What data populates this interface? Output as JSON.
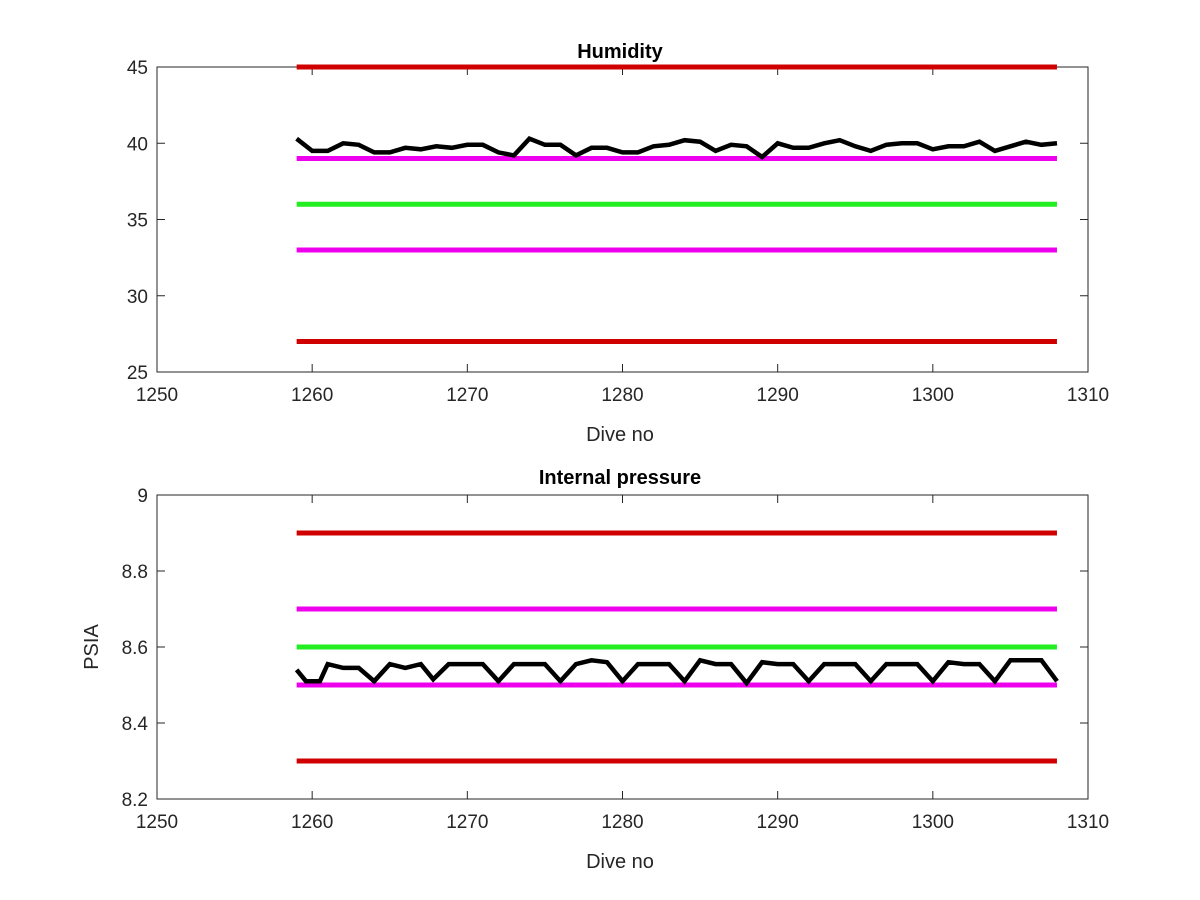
{
  "colors": {
    "red_limit": "#d00000",
    "magenta_limit": "#ee00ee",
    "green_target": "#22ee22",
    "data_line": "#000000",
    "axes": "#262626"
  },
  "chart_data": [
    {
      "type": "line",
      "title": "Humidity",
      "xlabel": "Dive no",
      "ylabel": "",
      "xlim": [
        1250,
        1310
      ],
      "ylim": [
        25,
        45
      ],
      "xticks": [
        1250,
        1260,
        1270,
        1280,
        1290,
        1300,
        1310
      ],
      "yticks": [
        25,
        30,
        35,
        40,
        45
      ],
      "xtick_labels": [
        "1250",
        "1260",
        "1270",
        "1280",
        "1290",
        "1300",
        "1310"
      ],
      "ytick_labels": [
        "25",
        "30",
        "35",
        "40",
        "45"
      ],
      "reference_lines": [
        {
          "y": 45,
          "x": [
            1259,
            1308
          ],
          "color": "red_limit"
        },
        {
          "y": 39,
          "x": [
            1259,
            1308
          ],
          "color": "magenta_limit"
        },
        {
          "y": 36,
          "x": [
            1259,
            1308
          ],
          "color": "green_target"
        },
        {
          "y": 33,
          "x": [
            1259,
            1308
          ],
          "color": "magenta_limit"
        },
        {
          "y": 27,
          "x": [
            1259,
            1308
          ],
          "color": "red_limit"
        }
      ],
      "series": [
        {
          "color": "data_line",
          "x": [
            1259,
            1260,
            1261,
            1262,
            1263,
            1264,
            1265,
            1266,
            1267,
            1268,
            1269,
            1270,
            1271,
            1272,
            1273,
            1274,
            1275,
            1276,
            1277,
            1278,
            1279,
            1280,
            1281,
            1282,
            1283,
            1284,
            1285,
            1286,
            1287,
            1288,
            1289,
            1290,
            1291,
            1292,
            1293,
            1294,
            1295,
            1296,
            1297,
            1298,
            1299,
            1300,
            1301,
            1302,
            1303,
            1304,
            1305,
            1306,
            1307,
            1308
          ],
          "y": [
            40.3,
            39.5,
            39.5,
            40.0,
            39.9,
            39.4,
            39.4,
            39.7,
            39.6,
            39.8,
            39.7,
            39.9,
            39.9,
            39.4,
            39.2,
            40.3,
            39.9,
            39.9,
            39.2,
            39.7,
            39.7,
            39.4,
            39.4,
            39.8,
            39.9,
            40.2,
            40.1,
            39.5,
            39.9,
            39.8,
            39.1,
            40.0,
            39.7,
            39.7,
            40.0,
            40.2,
            39.8,
            39.5,
            39.9,
            40.0,
            40.0,
            39.6,
            39.8,
            39.8,
            40.1,
            39.5,
            39.8,
            40.1,
            39.9,
            40.0
          ]
        }
      ]
    },
    {
      "type": "line",
      "title": "Internal pressure",
      "xlabel": "Dive no",
      "ylabel": "PSIA",
      "xlim": [
        1250,
        1310
      ],
      "ylim": [
        8.2,
        9.0
      ],
      "xticks": [
        1250,
        1260,
        1270,
        1280,
        1290,
        1300,
        1310
      ],
      "yticks": [
        8.2,
        8.4,
        8.6,
        8.8,
        9.0
      ],
      "xtick_labels": [
        "1250",
        "1260",
        "1270",
        "1280",
        "1290",
        "1300",
        "1310"
      ],
      "ytick_labels": [
        "8.2",
        "8.4",
        "8.6",
        "8.8",
        "9"
      ],
      "reference_lines": [
        {
          "y": 8.9,
          "x": [
            1259,
            1308
          ],
          "color": "red_limit"
        },
        {
          "y": 8.7,
          "x": [
            1259,
            1308
          ],
          "color": "magenta_limit"
        },
        {
          "y": 8.6,
          "x": [
            1259,
            1308
          ],
          "color": "green_target"
        },
        {
          "y": 8.5,
          "x": [
            1259,
            1308
          ],
          "color": "magenta_limit"
        },
        {
          "y": 8.3,
          "x": [
            1259,
            1308
          ],
          "color": "red_limit"
        }
      ],
      "series": [
        {
          "color": "data_line",
          "x": [
            1259,
            1259.6,
            1260.5,
            1261,
            1262,
            1263,
            1264,
            1265,
            1266,
            1267,
            1267.8,
            1268.8,
            1270,
            1271,
            1272,
            1273,
            1274,
            1275,
            1276,
            1277,
            1278,
            1279,
            1280,
            1281,
            1282,
            1283,
            1284,
            1285,
            1286,
            1287,
            1288,
            1289,
            1290,
            1291,
            1292,
            1293,
            1294,
            1295,
            1296,
            1297,
            1298,
            1299,
            1300,
            1301,
            1302,
            1303,
            1304,
            1305,
            1306,
            1307,
            1308
          ],
          "y": [
            8.54,
            8.51,
            8.51,
            8.555,
            8.545,
            8.545,
            8.51,
            8.555,
            8.545,
            8.555,
            8.515,
            8.555,
            8.555,
            8.555,
            8.51,
            8.555,
            8.555,
            8.555,
            8.51,
            8.555,
            8.565,
            8.56,
            8.51,
            8.555,
            8.555,
            8.555,
            8.51,
            8.565,
            8.555,
            8.555,
            8.505,
            8.56,
            8.555,
            8.555,
            8.51,
            8.555,
            8.555,
            8.555,
            8.51,
            8.555,
            8.555,
            8.555,
            8.51,
            8.56,
            8.555,
            8.555,
            8.51,
            8.565,
            8.565,
            8.565,
            8.51
          ]
        }
      ]
    }
  ]
}
